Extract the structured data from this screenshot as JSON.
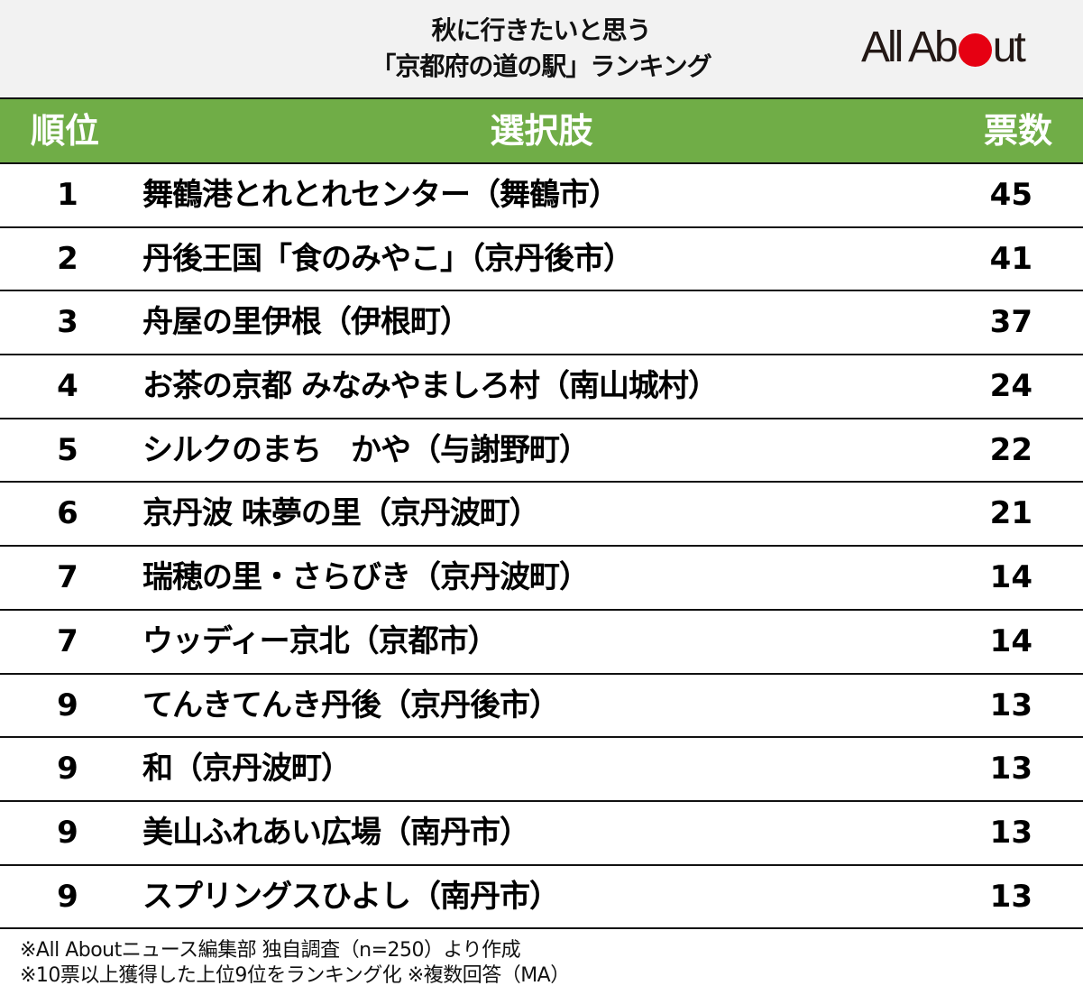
{
  "title": {
    "line1": "秋に行きたいと思う",
    "line2": "「京都府の道の駅」ランキング"
  },
  "logo": {
    "text_before": "All Ab",
    "text_after": "ut",
    "dot_color": "#e60012",
    "icon": "allabout-logo-icon"
  },
  "colors": {
    "header_bg": "#70ad47",
    "title_bg": "#f2f2f2",
    "header_text": "#ffffff"
  },
  "table": {
    "headers": {
      "rank": "順位",
      "choice": "選択肢",
      "votes": "票数"
    },
    "rows": [
      {
        "rank": "1",
        "name": "舞鶴港とれとれセンター（舞鶴市）",
        "votes": "45"
      },
      {
        "rank": "2",
        "name": "丹後王国「食のみやこ」（京丹後市）",
        "votes": "41"
      },
      {
        "rank": "3",
        "name": "舟屋の里伊根（伊根町）",
        "votes": "37"
      },
      {
        "rank": "4",
        "name": "お茶の京都 みなみやましろ村（南山城村）",
        "votes": "24"
      },
      {
        "rank": "5",
        "name": "シルクのまち　かや（与謝野町）",
        "votes": "22"
      },
      {
        "rank": "6",
        "name": "京丹波 味夢の里（京丹波町）",
        "votes": "21"
      },
      {
        "rank": "7",
        "name": "瑞穂の里・さらびき（京丹波町）",
        "votes": "14"
      },
      {
        "rank": "7",
        "name": "ウッディー京北（京都市）",
        "votes": "14"
      },
      {
        "rank": "9",
        "name": "てんきてんき丹後（京丹後市）",
        "votes": "13"
      },
      {
        "rank": "9",
        "name": "和（京丹波町）",
        "votes": "13"
      },
      {
        "rank": "9",
        "name": "美山ふれあい広場（南丹市）",
        "votes": "13"
      },
      {
        "rank": "9",
        "name": "スプリングスひよし（南丹市）",
        "votes": "13"
      }
    ]
  },
  "footer": {
    "note1": "※All Aboutニュース編集部 独自調査（n=250）より作成",
    "note2": "※10票以上獲得した上位9位をランキング化 ※複数回答（MA）"
  },
  "chart_data": {
    "type": "table",
    "title": "秋に行きたいと思う「京都府の道の駅」ランキング",
    "columns": [
      "順位",
      "選択肢",
      "票数"
    ],
    "categories": [
      "舞鶴港とれとれセンター（舞鶴市）",
      "丹後王国「食のみやこ」（京丹後市）",
      "舟屋の里伊根（伊根町）",
      "お茶の京都 みなみやましろ村（南山城村）",
      "シルクのまち　かや（与謝野町）",
      "京丹波 味夢の里（京丹波町）",
      "瑞穂の里・さらびき（京丹波町）",
      "ウッディー京北（京都市）",
      "てんきてんき丹後（京丹後市）",
      "和（京丹波町）",
      "美山ふれあい広場（南丹市）",
      "スプリングスひよし（南丹市）"
    ],
    "ranks": [
      1,
      2,
      3,
      4,
      5,
      6,
      7,
      7,
      9,
      9,
      9,
      9
    ],
    "values": [
      45,
      41,
      37,
      24,
      22,
      21,
      14,
      14,
      13,
      13,
      13,
      13
    ],
    "notes": [
      "※All Aboutニュース編集部 独自調査（n=250）より作成",
      "※10票以上獲得した上位9位をランキング化 ※複数回答（MA）"
    ]
  }
}
